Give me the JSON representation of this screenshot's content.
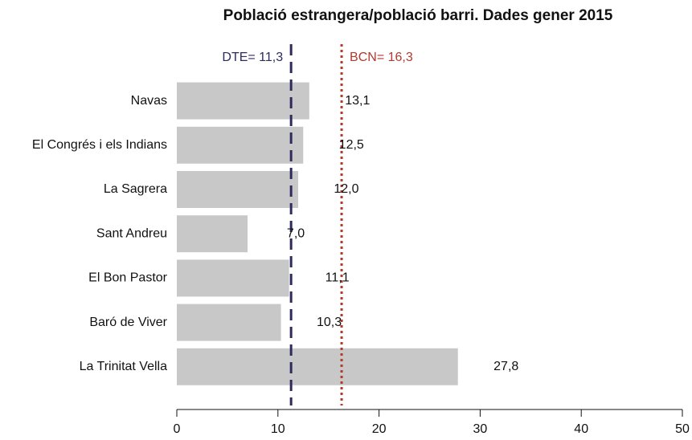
{
  "chart_data": {
    "type": "barh",
    "title": "Població estrangera/població barri. Dades gener 2015",
    "categories": [
      "Navas",
      "El Congrés i els Indians",
      "La Sagrera",
      "Sant Andreu",
      "El Bon Pastor",
      "Baró de Viver",
      "La Trinitat Vella"
    ],
    "values": [
      13.1,
      12.5,
      12.0,
      7.0,
      11.1,
      10.3,
      27.8
    ],
    "value_labels": [
      "13,1",
      "12,5",
      "12,0",
      "7,0",
      "11,1",
      "10,3",
      "27,8"
    ],
    "color": "#c8c8c8",
    "xlim": [
      0,
      50
    ],
    "xticks": [
      0,
      10,
      20,
      30,
      40,
      50
    ],
    "reference_lines": [
      {
        "value": 11.3,
        "label": "DTE= 11,3",
        "color": "#2e2b5c",
        "style": "dashed"
      },
      {
        "value": 16.3,
        "label": "BCN= 16,3",
        "color": "#b23a2c",
        "style": "dotted"
      }
    ]
  }
}
